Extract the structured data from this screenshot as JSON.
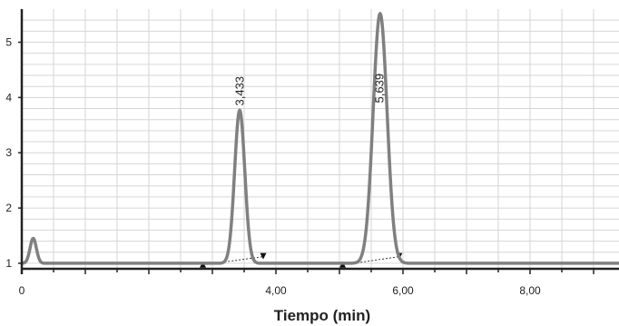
{
  "chart_data": {
    "type": "line",
    "title": "",
    "xlabel": "Tiempo (min)",
    "ylabel": "",
    "xlim": [
      0,
      9.4
    ],
    "ylim": [
      0.9,
      5.6
    ],
    "grid": true,
    "x_ticks": [
      {
        "value": 0,
        "label": "0"
      },
      {
        "value": 4,
        "label": "4,00"
      },
      {
        "value": 6,
        "label": "6,00"
      },
      {
        "value": 8,
        "label": "8,00"
      }
    ],
    "y_ticks": [
      {
        "value": 1,
        "label": "1"
      },
      {
        "value": 2,
        "label": "2"
      },
      {
        "value": 3,
        "label": "3"
      },
      {
        "value": 4,
        "label": "4"
      },
      {
        "value": 5,
        "label": "5"
      }
    ],
    "series": [
      {
        "color": "#808080",
        "baseline": 1.0,
        "peaks": [
          {
            "center": 0.18,
            "height": 1.45,
            "width": 0.05
          },
          {
            "center": 3.43,
            "height": 3.77,
            "width": 0.08
          },
          {
            "center": 5.64,
            "height": 5.52,
            "width": 0.11
          }
        ]
      }
    ],
    "annotations": [
      {
        "x": 3.433,
        "y": 3.85,
        "text": "3,433"
      },
      {
        "x": 5.639,
        "y": 3.9,
        "text": "5,639"
      }
    ],
    "integration_markers": [
      {
        "start": 2.85,
        "end": 3.8,
        "y_start": 0.97,
        "y_end": 1.12
      },
      {
        "start": 5.05,
        "end": 5.94,
        "y_start": 0.97,
        "y_end": 1.12
      }
    ]
  }
}
